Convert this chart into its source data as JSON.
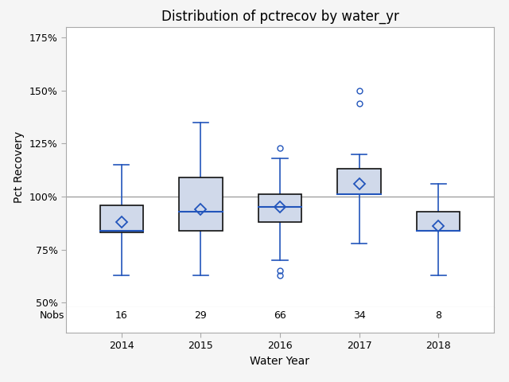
{
  "title": "Distribution of pctrecov by water_yr",
  "xlabel": "Water Year",
  "ylabel": "Pct Recovery",
  "years": [
    2014,
    2015,
    2016,
    2017,
    2018
  ],
  "nobs": [
    16,
    29,
    66,
    34,
    8
  ],
  "boxes": [
    {
      "q1": 83,
      "median": 84,
      "q3": 96,
      "mean": 88,
      "whislo": 63,
      "whishi": 115
    },
    {
      "q1": 84,
      "median": 93,
      "q3": 109,
      "mean": 94,
      "whislo": 63,
      "whishi": 135
    },
    {
      "q1": 88,
      "median": 95,
      "q3": 101,
      "mean": 95,
      "whislo": 70,
      "whishi": 118
    },
    {
      "q1": 101,
      "median": 101,
      "q3": 113,
      "mean": 106,
      "whislo": 78,
      "whishi": 120
    },
    {
      "q1": 84,
      "median": 84,
      "q3": 93,
      "mean": 86,
      "whislo": 63,
      "whishi": 106
    }
  ],
  "outliers": [
    [],
    [],
    [
      123,
      63,
      65
    ],
    [
      150,
      144
    ],
    []
  ],
  "hline_y": 100,
  "box_facecolor": "#d0d9ea",
  "box_edgecolor": "#111111",
  "whisker_color": "#2255bb",
  "median_color": "#2255bb",
  "mean_marker_color": "#2255bb",
  "outlier_color": "#2255bb",
  "hline_color": "#999999",
  "ylim_data": [
    50,
    175
  ],
  "yticks": [
    50,
    75,
    100,
    125,
    150,
    175
  ],
  "ytick_labels": [
    "50%",
    "75%",
    "100%",
    "125%",
    "150%",
    "175%"
  ],
  "background_color": "#f5f5f5",
  "plot_bg_color": "#ffffff",
  "border_color": "#aaaaaa",
  "title_fontsize": 12,
  "label_fontsize": 10,
  "tick_fontsize": 9,
  "nobs_fontsize": 9,
  "box_width": 0.55
}
